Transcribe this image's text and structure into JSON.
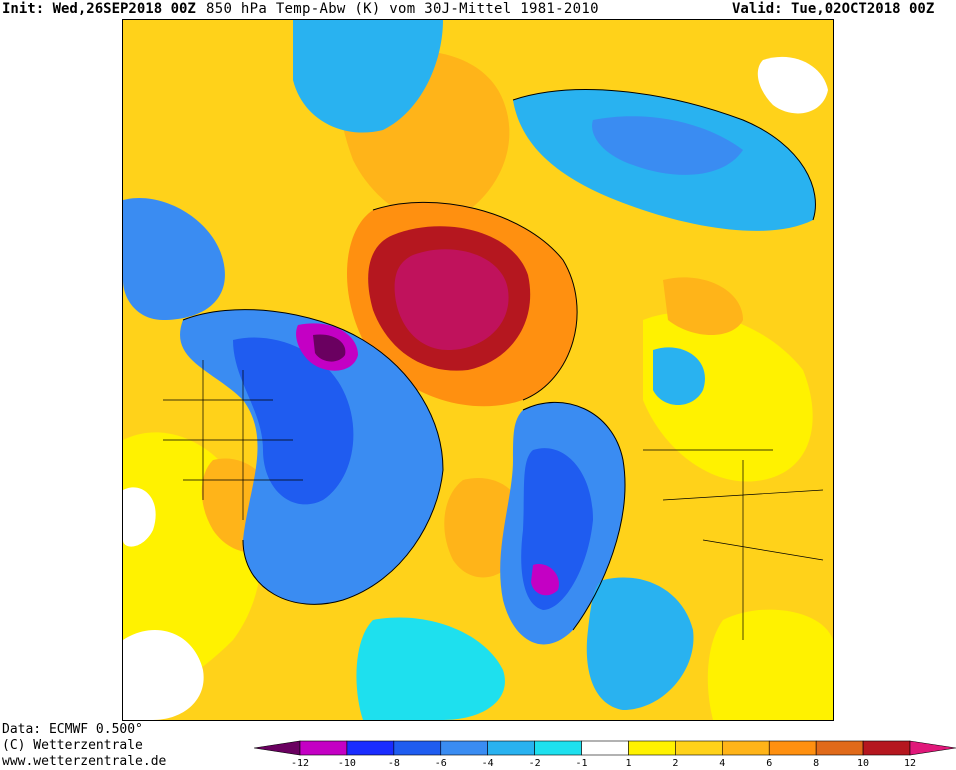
{
  "header": {
    "init": "Init: Wed,26SEP2018 00Z",
    "title": "850 hPa Temp-Abw (K) vom 30J-Mittel 1981-2010",
    "valid": "Valid: Tue,02OCT2018 00Z"
  },
  "footer": {
    "data_source": "Data: ECMWF  0.500°",
    "copyright": "(C) Wetterzentrale",
    "url": "www.wetterzentrale.de"
  },
  "legend": {
    "tick_labels": [
      "-12",
      "-10",
      "-8",
      "-6",
      "-4",
      "-2",
      "-1",
      "1",
      "2",
      "4",
      "6",
      "8",
      "10",
      "12"
    ],
    "colors": [
      "#6a0060",
      "#c400c4",
      "#1a2cff",
      "#1f5cf0",
      "#3a8cf2",
      "#29b2f0",
      "#1ee0ee",
      "#ffffff",
      "#fff200",
      "#ffd21a",
      "#ffb419",
      "#ff9010",
      "#e06a1a",
      "#b5171f",
      "#e0187a"
    ]
  },
  "map": {
    "projection": "polar stereographic",
    "region": "Northern Hemisphere"
  }
}
